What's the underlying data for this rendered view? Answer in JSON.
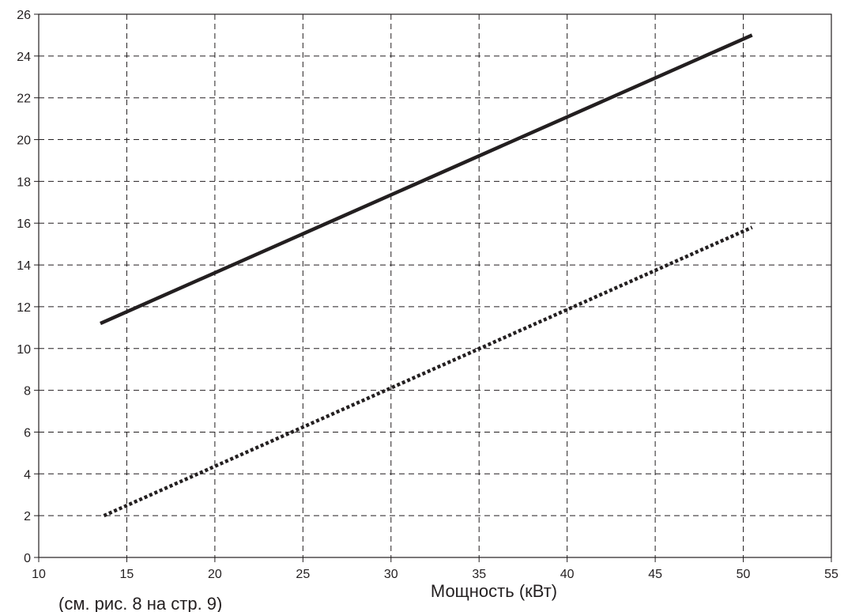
{
  "chart_data": {
    "type": "line",
    "title": "",
    "xlabel": "Мощность (кВт)",
    "ylabel": "",
    "note": "(см. рис. 8 на стр. 9)",
    "xlim": [
      10,
      55
    ],
    "ylim": [
      0,
      26
    ],
    "x_ticks": [
      "10",
      "15",
      "20",
      "25",
      "30",
      "35",
      "40",
      "45",
      "50",
      "55"
    ],
    "y_ticks": [
      "0",
      "2",
      "4",
      "6",
      "8",
      "10",
      "12",
      "14",
      "16",
      "18",
      "20",
      "22",
      "24",
      "26"
    ],
    "grid": true,
    "legend": "none",
    "series": [
      {
        "style": "solid",
        "color": "#231f20",
        "points": [
          [
            13.5,
            11.2
          ],
          [
            50.5,
            25.0
          ]
        ]
      },
      {
        "style": "dotted",
        "color": "#231f20",
        "points": [
          [
            13.7,
            2.0
          ],
          [
            50.5,
            15.8
          ]
        ]
      }
    ]
  }
}
